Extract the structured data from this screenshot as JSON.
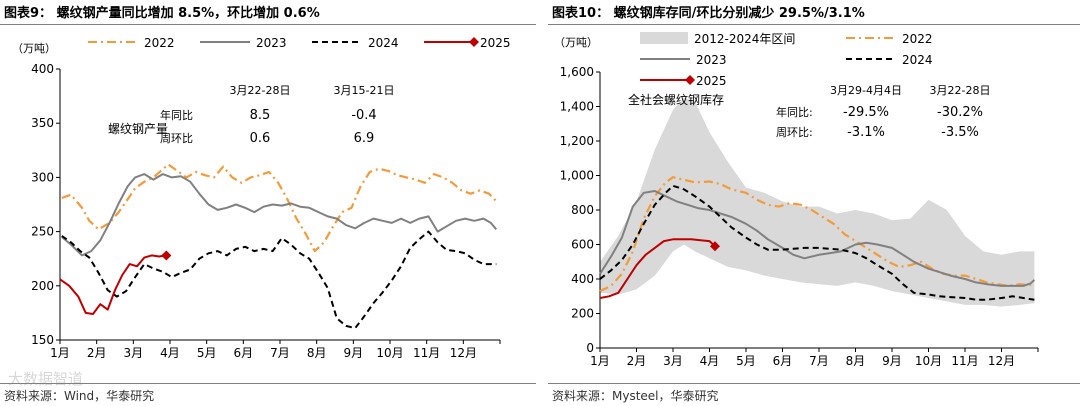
{
  "left": {
    "title": "图表9： 螺纹钢产量同比增加 8.5%，环比增加 0.6%",
    "source": "资料来源：Wind，华泰研究",
    "watermark": "大数据智道",
    "chart_data": {
      "type": "line",
      "title": "螺纹钢产量同比增加 8.5%，环比增加 0.6%",
      "ylabel": "（万吨）",
      "ylim": [
        150,
        400
      ],
      "yticks": [
        150,
        200,
        250,
        300,
        350,
        400
      ],
      "xlim": [
        1,
        13
      ],
      "xticks": [
        "1月",
        "2月",
        "3月",
        "4月",
        "5月",
        "6月",
        "7月",
        "8月",
        "9月",
        "10月",
        "11月",
        "12月"
      ],
      "inner_label": "螺纹钢产量",
      "series": [
        {
          "name": "2022",
          "color": "#F39A3A",
          "dash": "dashdot",
          "x": [
            1.05,
            1.3,
            1.6,
            1.8,
            2.05,
            2.35,
            2.6,
            2.85,
            3.05,
            3.3,
            3.55,
            3.75,
            3.95,
            4.2,
            4.45,
            4.7,
            4.95,
            5.2,
            5.45,
            5.7,
            5.95,
            6.2,
            6.45,
            6.7,
            6.95,
            7.2,
            7.45,
            7.7,
            7.95,
            8.2,
            8.45,
            8.7,
            8.95,
            9.2,
            9.45,
            9.7,
            9.95,
            10.2,
            10.45,
            10.7,
            10.95,
            11.2,
            11.45,
            11.7,
            11.95,
            12.2,
            12.45,
            12.7,
            12.9
          ],
          "y": [
            281,
            284,
            272,
            260,
            252,
            258,
            268,
            280,
            290,
            296,
            300,
            306,
            312,
            306,
            300,
            305,
            302,
            300,
            310,
            300,
            295,
            300,
            302,
            305,
            295,
            280,
            262,
            248,
            232,
            240,
            255,
            268,
            272,
            292,
            305,
            308,
            306,
            302,
            300,
            298,
            295,
            303,
            300,
            295,
            288,
            285,
            288,
            285,
            278
          ]
        },
        {
          "name": "2023",
          "color": "#808080",
          "dash": "solid",
          "x": [
            1.05,
            1.3,
            1.6,
            1.85,
            2.1,
            2.35,
            2.6,
            2.85,
            3.05,
            3.3,
            3.55,
            3.8,
            4.05,
            4.3,
            4.55,
            4.8,
            5.05,
            5.3,
            5.55,
            5.8,
            6.05,
            6.3,
            6.55,
            6.8,
            7.05,
            7.3,
            7.55,
            7.8,
            8.05,
            8.3,
            8.55,
            8.8,
            9.05,
            9.3,
            9.55,
            9.8,
            10.05,
            10.3,
            10.55,
            10.8,
            11.05,
            11.3,
            11.55,
            11.8,
            12.05,
            12.3,
            12.55,
            12.75,
            12.9
          ],
          "y": [
            245,
            238,
            228,
            232,
            242,
            258,
            276,
            292,
            300,
            303,
            298,
            303,
            300,
            301,
            296,
            285,
            275,
            270,
            272,
            275,
            272,
            268,
            273,
            275,
            274,
            276,
            273,
            272,
            268,
            264,
            262,
            256,
            253,
            258,
            262,
            260,
            258,
            262,
            258,
            262,
            264,
            250,
            255,
            260,
            262,
            260,
            262,
            258,
            252
          ]
        },
        {
          "name": "2024",
          "color": "#000000",
          "dash": "dashed",
          "x": [
            1.05,
            1.3,
            1.55,
            1.8,
            2.05,
            2.3,
            2.55,
            2.8,
            3.05,
            3.3,
            3.55,
            3.8,
            4.05,
            4.3,
            4.55,
            4.8,
            5.05,
            5.3,
            5.55,
            5.8,
            6.05,
            6.3,
            6.55,
            6.8,
            7.05,
            7.3,
            7.55,
            7.8,
            8.05,
            8.3,
            8.55,
            8.8,
            9.05,
            9.3,
            9.55,
            9.8,
            10.05,
            10.3,
            10.55,
            10.8,
            11.05,
            11.3,
            11.55,
            11.8,
            12.05,
            12.3,
            12.55,
            12.75,
            12.9
          ],
          "y": [
            246,
            240,
            232,
            226,
            212,
            196,
            190,
            195,
            208,
            220,
            216,
            213,
            208,
            212,
            215,
            225,
            230,
            232,
            228,
            234,
            236,
            232,
            234,
            232,
            244,
            238,
            230,
            225,
            212,
            198,
            170,
            163,
            161,
            172,
            184,
            194,
            205,
            218,
            235,
            243,
            250,
            240,
            233,
            232,
            230,
            224,
            220,
            220,
            220
          ]
        },
        {
          "name": "2025",
          "color": "#C00000",
          "dash": "solid",
          "x": [
            1.0,
            1.25,
            1.5,
            1.7,
            1.9,
            2.1,
            2.3,
            2.5,
            2.7,
            2.9,
            3.1,
            3.3,
            3.5,
            3.7,
            3.9
          ],
          "y": [
            206,
            200,
            190,
            175,
            174,
            183,
            178,
            196,
            210,
            220,
            218,
            226,
            228,
            227,
            228
          ]
        }
      ],
      "annotation_table": {
        "headers": [
          "",
          "3月22-28日",
          "3月15-21日"
        ],
        "rows": [
          [
            "年同比",
            "8.5",
            "-0.4"
          ],
          [
            "周环比",
            "0.6",
            "6.9"
          ]
        ]
      },
      "legend_position": "top"
    }
  },
  "right": {
    "title": "图表10： 螺纹钢库存同/环比分别减少 29.5%/3.1%",
    "source": "资料来源：Mysteel，华泰研究",
    "chart_data": {
      "type": "line",
      "title": "螺纹钢库存同/环比分别减少 29.5%/3.1%",
      "ylabel": "（万吨）",
      "ylim": [
        0,
        1600
      ],
      "yticks": [
        0,
        200,
        400,
        600,
        800,
        1000,
        1200,
        1400,
        1600
      ],
      "ytick_labels": [
        "0",
        "200",
        "400",
        "600",
        "800",
        "1,000",
        "1,200",
        "1,400",
        "1,600"
      ],
      "xlim": [
        1,
        13
      ],
      "xticks": [
        "1月",
        "2月",
        "3月",
        "4月",
        "5月",
        "6月",
        "7月",
        "8月",
        "9月",
        "10月",
        "11月",
        "12月"
      ],
      "inner_label": "全社会螺纹钢库存",
      "band": {
        "name": "2012-2024年区间",
        "color": "#D9D9D9",
        "x": [
          1.0,
          1.5,
          2.0,
          2.5,
          3.0,
          3.3,
          3.6,
          4.0,
          4.5,
          5.0,
          5.5,
          6.0,
          6.5,
          7.0,
          7.5,
          8.0,
          8.5,
          9.0,
          9.5,
          10.0,
          10.5,
          11.0,
          11.5,
          12.0,
          12.5,
          12.9
        ],
        "upper": [
          500,
          650,
          850,
          1150,
          1380,
          1450,
          1430,
          1250,
          1080,
          930,
          900,
          850,
          820,
          820,
          780,
          800,
          780,
          740,
          750,
          860,
          800,
          650,
          560,
          540,
          560,
          560
        ],
        "lower": [
          320,
          310,
          340,
          420,
          560,
          600,
          560,
          520,
          470,
          450,
          420,
          400,
          380,
          370,
          360,
          380,
          360,
          330,
          310,
          290,
          270,
          250,
          250,
          240,
          250,
          260
        ]
      },
      "series": [
        {
          "name": "2022",
          "color": "#F39A3A",
          "dash": "dashdot",
          "x": [
            1.0,
            1.3,
            1.6,
            1.9,
            2.2,
            2.5,
            2.8,
            3.0,
            3.3,
            3.6,
            4.0,
            4.3,
            4.6,
            5.0,
            5.3,
            5.6,
            5.9,
            6.2,
            6.5,
            6.8,
            7.1,
            7.4,
            7.7,
            8.0,
            8.3,
            8.6,
            8.9,
            9.2,
            9.5,
            9.8,
            10.1,
            10.4,
            10.7,
            11.0,
            11.3,
            11.6,
            11.9,
            12.2,
            12.5,
            12.7,
            12.9
          ],
          "y": [
            330,
            360,
            430,
            560,
            750,
            880,
            960,
            990,
            975,
            960,
            965,
            950,
            920,
            900,
            860,
            830,
            820,
            840,
            830,
            800,
            760,
            720,
            660,
            620,
            580,
            540,
            500,
            470,
            480,
            500,
            460,
            430,
            420,
            420,
            400,
            380,
            370,
            360,
            370,
            365,
            370
          ]
        },
        {
          "name": "2023",
          "color": "#808080",
          "dash": "solid",
          "x": [
            1.0,
            1.3,
            1.6,
            1.9,
            2.2,
            2.5,
            2.8,
            3.1,
            3.4,
            3.7,
            4.0,
            4.3,
            4.6,
            5.0,
            5.3,
            5.6,
            6.0,
            6.3,
            6.6,
            7.0,
            7.3,
            7.6,
            8.0,
            8.3,
            8.6,
            9.0,
            9.3,
            9.6,
            10.0,
            10.3,
            10.6,
            11.0,
            11.3,
            11.6,
            12.0,
            12.3,
            12.6,
            12.8,
            12.9
          ],
          "y": [
            430,
            530,
            640,
            820,
            900,
            910,
            880,
            850,
            830,
            810,
            800,
            780,
            760,
            720,
            680,
            630,
            580,
            540,
            520,
            540,
            550,
            560,
            600,
            610,
            600,
            580,
            540,
            500,
            460,
            440,
            420,
            400,
            380,
            370,
            360,
            360,
            360,
            375,
            395
          ]
        },
        {
          "name": "2024",
          "color": "#000000",
          "dash": "dashed",
          "x": [
            1.0,
            1.3,
            1.6,
            1.9,
            2.2,
            2.5,
            2.8,
            3.0,
            3.3,
            3.6,
            4.0,
            4.3,
            4.6,
            5.0,
            5.3,
            5.6,
            6.0,
            6.3,
            6.6,
            7.0,
            7.3,
            7.6,
            8.0,
            8.3,
            8.6,
            9.0,
            9.3,
            9.6,
            10.0,
            10.3,
            10.6,
            11.0,
            11.3,
            11.6,
            12.0,
            12.3,
            12.6,
            12.9
          ],
          "y": [
            400,
            450,
            510,
            600,
            720,
            830,
            900,
            940,
            920,
            880,
            820,
            760,
            700,
            640,
            600,
            570,
            570,
            575,
            580,
            580,
            575,
            570,
            550,
            520,
            480,
            430,
            370,
            320,
            310,
            300,
            295,
            290,
            280,
            280,
            290,
            300,
            290,
            280
          ]
        },
        {
          "name": "2025",
          "color": "#C00000",
          "dash": "solid",
          "x": [
            1.0,
            1.25,
            1.5,
            1.75,
            2.0,
            2.25,
            2.5,
            2.75,
            3.0,
            3.25,
            3.5,
            3.75,
            4.0,
            4.15
          ],
          "y": [
            290,
            300,
            320,
            400,
            480,
            540,
            580,
            620,
            630,
            630,
            630,
            625,
            620,
            590
          ]
        }
      ],
      "annotation_table": {
        "headers": [
          "",
          "3月29-4月4日",
          "3月22-28日"
        ],
        "rows": [
          [
            "年同比:",
            "-29.5%",
            "-30.2%"
          ],
          [
            "周环比:",
            "-3.1%",
            "-3.5%"
          ]
        ]
      },
      "legend_position": "top"
    }
  }
}
